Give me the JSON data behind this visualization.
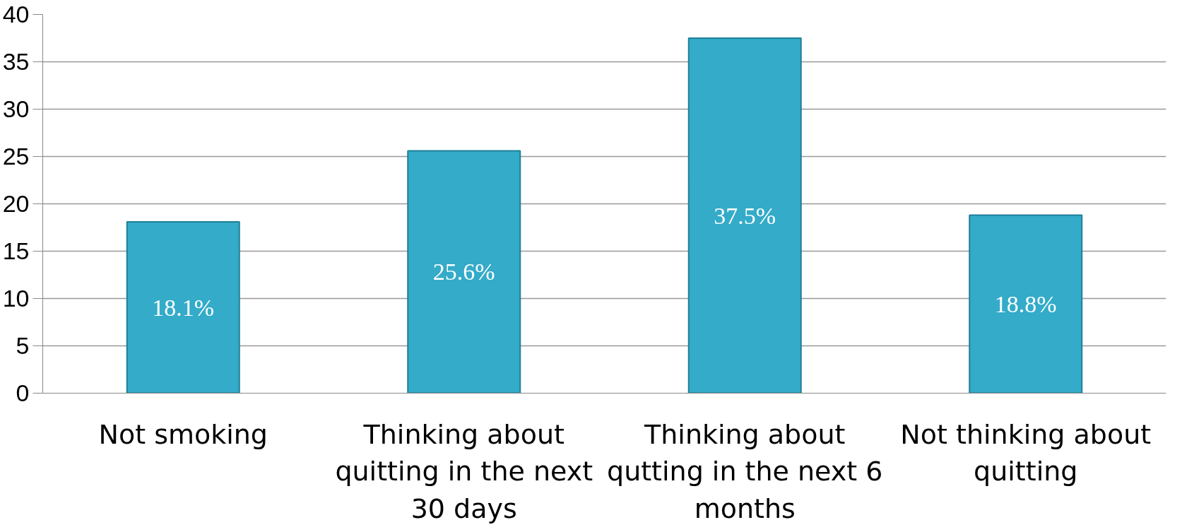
{
  "chart_data": {
    "type": "bar",
    "categories": [
      "Not smoking",
      "Thinking about quitting in the next 30 days",
      "Thinking about qutting in the next 6 months",
      "Not thinking about quitting"
    ],
    "values": [
      18.1,
      25.6,
      37.5,
      18.8
    ],
    "value_labels": [
      "18.1%",
      "25.6%",
      "37.5%",
      "18.8%"
    ],
    "color": "#33abc9",
    "ylim": [
      0,
      40
    ],
    "yticks": [
      0,
      5,
      10,
      15,
      20,
      25,
      30,
      35,
      40
    ],
    "grid": "y"
  }
}
